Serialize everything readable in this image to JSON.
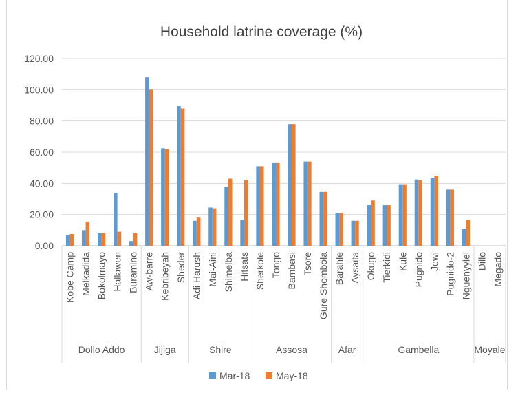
{
  "chart_data": {
    "type": "bar",
    "title": "Household latrine coverage (%)",
    "xlabel": "",
    "ylabel": "",
    "ylim": [
      0,
      120
    ],
    "yticks": [
      "0.00",
      "20.00",
      "40.00",
      "60.00",
      "80.00",
      "100.00",
      "120.00"
    ],
    "grid": true,
    "legend_position": "bottom",
    "categories": [
      "Kobe Camp",
      "Melkadida",
      "Bokolmayo",
      "Hallawen",
      "Buramino",
      "Aw-barre",
      "Kebribeyah",
      "Sheder",
      "Adi Harush",
      "Mai-Aini",
      "Shimelba",
      "Hitsats",
      "Sherkole",
      "Tongo",
      "Bambasi",
      "Tsore",
      "Gure Shombola",
      "Barahle",
      "Aysaita",
      "Okugo",
      "Tierkidi",
      "Kule",
      "Pugnido",
      "Jewi",
      "Pugnido-2",
      "Nguenyyiel",
      "Dillo",
      "Megado"
    ],
    "groups": [
      {
        "name": "Dollo Addo",
        "count": 5
      },
      {
        "name": "Jijiga",
        "count": 3
      },
      {
        "name": "Shire",
        "count": 4
      },
      {
        "name": "Assosa",
        "count": 5
      },
      {
        "name": "Afar",
        "count": 2
      },
      {
        "name": "Gambella",
        "count": 7
      },
      {
        "name": "Moyale",
        "count": 2
      }
    ],
    "series": [
      {
        "name": "Mar-18",
        "color": "#5b9bd5",
        "values": [
          7,
          10,
          8,
          34,
          3,
          108,
          62.5,
          89.5,
          16,
          24.5,
          37.5,
          16.5,
          51,
          53,
          78,
          54,
          34.5,
          21,
          16,
          26,
          26,
          39,
          42.5,
          43.5,
          36,
          11,
          0,
          0
        ]
      },
      {
        "name": "May-18",
        "color": "#ed7d31",
        "values": [
          7.5,
          15.5,
          8,
          9,
          8,
          100,
          62,
          88,
          18,
          24,
          43,
          42,
          51,
          53,
          78,
          54,
          34.5,
          21,
          16,
          29,
          26,
          39,
          42,
          45,
          36,
          16.5,
          0,
          0
        ]
      }
    ]
  }
}
